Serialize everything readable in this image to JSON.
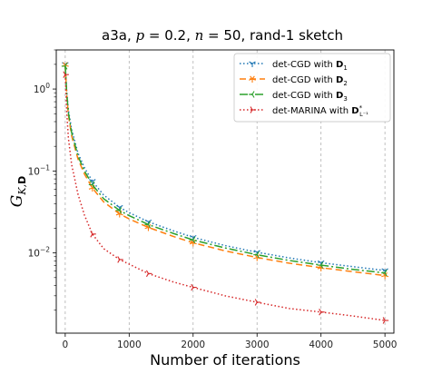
{
  "chart_data": {
    "type": "line",
    "title": "a3a, p = 0.2, n = 50, rand-1 sketch",
    "title_parts": {
      "dataset": "a3a, ",
      "p_sym": "p",
      "p_val": " = 0.2, ",
      "n_sym": "n",
      "n_val": " = 50, rand-1 sketch"
    },
    "xlabel": "Number of iterations",
    "ylabel": {
      "main": "G",
      "sub": "K,",
      "sub_bold": "D"
    },
    "xlim": [
      -140,
      5140
    ],
    "ylim": [
      0.00105,
      3.0
    ],
    "yscale": "log",
    "grid": {
      "x": true,
      "y": false
    },
    "x_ticks": [
      0,
      1000,
      2000,
      3000,
      4000,
      5000
    ],
    "x_tick_labels": [
      "0",
      "1000",
      "2000",
      "3000",
      "4000",
      "5000"
    ],
    "y_ticks": [
      0.01,
      0.1,
      1
    ],
    "y_tick_labels": [
      {
        "base": "10",
        "exp": "−2"
      },
      {
        "base": "10",
        "exp": "−1"
      },
      {
        "base": "10",
        "exp": "0"
      }
    ],
    "legend": {
      "placement": "top-right",
      "entries": [
        {
          "prefix": "det-CGD with ",
          "bold": "D",
          "sub": "1",
          "sup": ""
        },
        {
          "prefix": "det-CGD with ",
          "bold": "D",
          "sub": "2",
          "sup": ""
        },
        {
          "prefix": "det-CGD with ",
          "bold": "D",
          "sub": "3",
          "sup": ""
        },
        {
          "prefix": "det-MARINA with ",
          "bold": "D",
          "sub": "L⁻¹",
          "sup": "*"
        }
      ]
    },
    "series": [
      {
        "name": "det-CGD with D1",
        "color": "#1f77b4",
        "dash": "1.5,2.5",
        "marker": "tri_down",
        "x": [
          0,
          25,
          50,
          100,
          200,
          300,
          425,
          600,
          850,
          1000,
          1300,
          1700,
          2000,
          2500,
          3000,
          3500,
          4000,
          4500,
          5000
        ],
        "y": [
          2.0,
          0.9,
          0.55,
          0.32,
          0.165,
          0.11,
          0.075,
          0.051,
          0.036,
          0.031,
          0.024,
          0.0185,
          0.0155,
          0.0123,
          0.0102,
          0.0087,
          0.0076,
          0.0068,
          0.0061
        ]
      },
      {
        "name": "det-CGD with D2",
        "color": "#ff7f0e",
        "dash": "7,4",
        "marker": "star",
        "x": [
          0,
          25,
          50,
          100,
          200,
          300,
          425,
          600,
          850,
          1000,
          1300,
          1700,
          2000,
          2500,
          3000,
          3500,
          4000,
          4500,
          5000
        ],
        "y": [
          1.95,
          0.82,
          0.48,
          0.27,
          0.14,
          0.092,
          0.062,
          0.042,
          0.03,
          0.026,
          0.0205,
          0.0158,
          0.0133,
          0.0106,
          0.0088,
          0.0075,
          0.0066,
          0.0059,
          0.0053
        ]
      },
      {
        "name": "det-CGD with D3",
        "color": "#2ca02c",
        "dash": "9,3,2,3",
        "marker": "tri_left",
        "x": [
          0,
          25,
          50,
          100,
          200,
          300,
          425,
          600,
          850,
          1000,
          1300,
          1700,
          2000,
          2500,
          3000,
          3500,
          4000,
          4500,
          5000
        ],
        "y": [
          1.9,
          0.86,
          0.51,
          0.295,
          0.152,
          0.1,
          0.068,
          0.046,
          0.033,
          0.0285,
          0.0222,
          0.0172,
          0.0144,
          0.0115,
          0.0095,
          0.0081,
          0.0071,
          0.0063,
          0.0057
        ]
      },
      {
        "name": "det-MARINA with D*L-1",
        "color": "#d62728",
        "dash": "1.5,2.5",
        "marker": "tri_right",
        "x": [
          0,
          25,
          50,
          100,
          200,
          300,
          425,
          600,
          850,
          1000,
          1300,
          1700,
          2000,
          2500,
          3000,
          3500,
          4000,
          4500,
          5000
        ],
        "y": [
          1.5,
          0.5,
          0.25,
          0.12,
          0.052,
          0.029,
          0.017,
          0.0113,
          0.0083,
          0.0073,
          0.0056,
          0.0044,
          0.0038,
          0.003,
          0.0025,
          0.0021,
          0.0019,
          0.0017,
          0.0015
        ]
      }
    ]
  }
}
